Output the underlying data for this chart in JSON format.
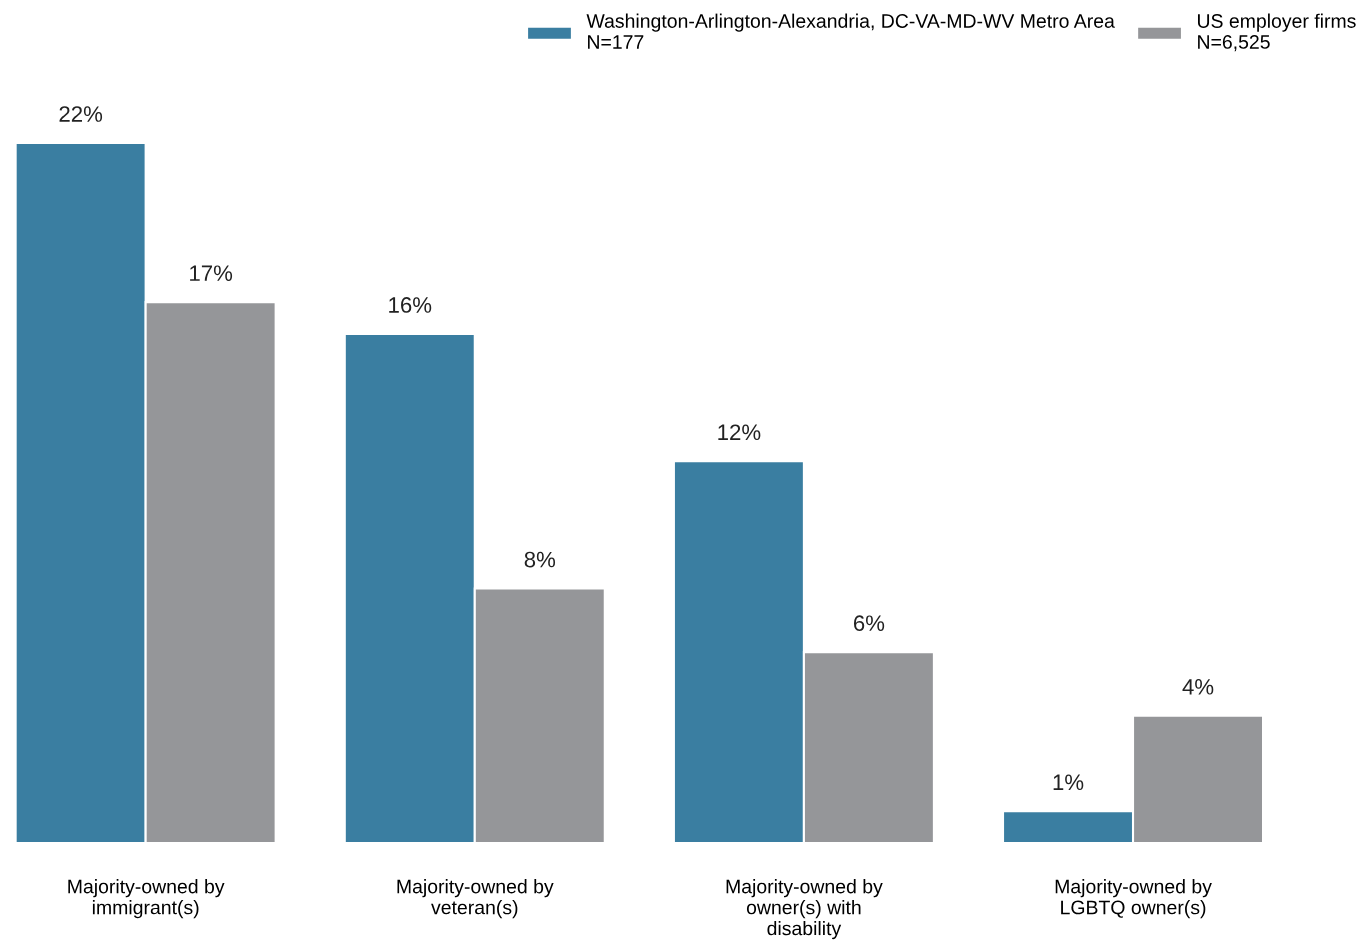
{
  "chart_data": {
    "type": "bar",
    "categories": [
      "Majority-owned by\nimmigrant(s)",
      "Majority-owned by\nveteran(s)",
      "Majority-owned by\nowner(s) with\ndisability",
      "Majority-owned by\nLGBTQ owner(s)"
    ],
    "series": [
      {
        "name": "Washington-Arlington-Alexandria, DC-VA-MD-WV Metro Area\nN=177",
        "color": "#3a7ea1",
        "values": [
          22,
          16,
          12,
          1
        ],
        "value_labels": [
          "22%",
          "16%",
          "12%",
          "1%"
        ]
      },
      {
        "name": "US employer firms\nN=6,525",
        "color": "#959699",
        "values": [
          17,
          8,
          6,
          4
        ],
        "value_labels": [
          "17%",
          "8%",
          "6%",
          "4%"
        ]
      }
    ],
    "legend": "top",
    "grid": false
  }
}
